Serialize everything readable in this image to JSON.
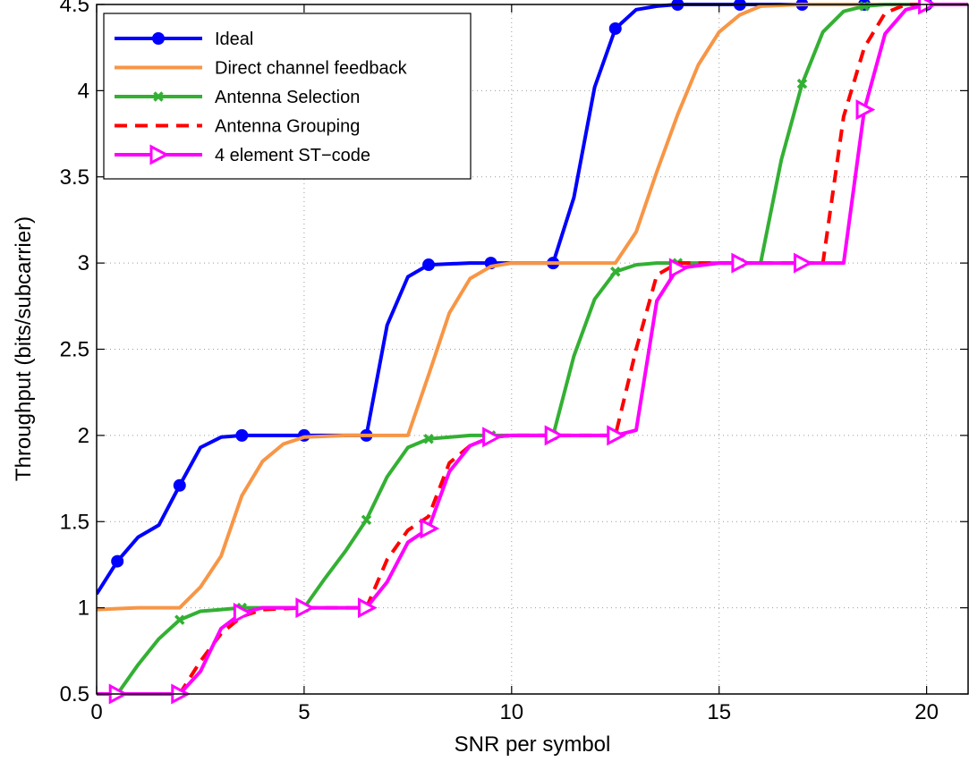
{
  "chart_data": {
    "type": "line",
    "title": "",
    "xlabel": "SNR per symbol",
    "ylabel": "Throughput (bits/subcarrier)",
    "xlim": [
      0,
      21
    ],
    "ylim": [
      0.5,
      4.5
    ],
    "xticks": [
      0,
      5,
      10,
      15,
      20
    ],
    "yticks": [
      0.5,
      1,
      1.5,
      2,
      2.5,
      3,
      3.5,
      4,
      4.5
    ],
    "xtick_labels": [
      "0",
      "5",
      "10",
      "15",
      "20"
    ],
    "ytick_labels": [
      "0.5",
      "1",
      "1.5",
      "2",
      "2.5",
      "3",
      "3.5",
      "4",
      "4.5"
    ],
    "grid": true,
    "legend_position": "top-left",
    "series": [
      {
        "name": "Ideal",
        "color": "#0000ff",
        "dash": "solid",
        "marker": "circle",
        "x": [
          0,
          0.5,
          1,
          1.5,
          2,
          2.5,
          3,
          3.5,
          4,
          5,
          6,
          6.5,
          7,
          7.5,
          8,
          9,
          9.5,
          10,
          11,
          11.5,
          12,
          12.5,
          13,
          13.5,
          14,
          15,
          15.5,
          16,
          17,
          18,
          18.5,
          20,
          21
        ],
        "y": [
          1.08,
          1.27,
          1.41,
          1.48,
          1.71,
          1.93,
          1.99,
          2.0,
          2.0,
          2.0,
          2.0,
          2.0,
          2.64,
          2.92,
          2.99,
          3.0,
          3.0,
          3.0,
          3.0,
          3.38,
          4.02,
          4.36,
          4.47,
          4.49,
          4.5,
          4.5,
          4.5,
          4.5,
          4.5,
          4.5,
          4.5,
          4.5,
          4.5
        ],
        "marker_x": [
          0.5,
          2,
          3.5,
          5,
          6.5,
          8,
          9.5,
          11,
          12.5,
          14,
          15.5,
          17,
          18.5,
          20
        ]
      },
      {
        "name": "Direct channel feedback",
        "color": "#f79646",
        "dash": "solid",
        "marker": "none",
        "x": [
          0,
          1,
          2,
          2.5,
          3,
          3.5,
          4,
          4.5,
          5,
          6,
          7,
          7.5,
          8,
          8.5,
          9,
          9.5,
          10,
          11,
          12,
          12.5,
          13,
          13.5,
          14,
          14.5,
          15,
          15.5,
          16,
          17,
          18,
          19,
          20,
          21
        ],
        "y": [
          0.99,
          1.0,
          1.0,
          1.12,
          1.3,
          1.65,
          1.85,
          1.95,
          1.99,
          2.0,
          2.0,
          2.0,
          2.35,
          2.71,
          2.91,
          2.98,
          3.0,
          3.0,
          3.0,
          3.0,
          3.18,
          3.53,
          3.86,
          4.15,
          4.34,
          4.44,
          4.49,
          4.5,
          4.5,
          4.5,
          4.5,
          4.5
        ]
      },
      {
        "name": "Antenna Selection",
        "color": "#33b033",
        "dash": "solid",
        "marker": "x",
        "x": [
          0.5,
          1,
          1.5,
          2,
          2.5,
          3,
          3.5,
          4,
          5,
          5.5,
          6,
          6.5,
          7,
          7.5,
          8,
          9,
          11,
          11.5,
          12,
          12.5,
          13,
          13.5,
          14,
          15,
          16,
          16.5,
          17,
          17.5,
          18,
          18.5,
          19,
          20,
          21
        ],
        "y": [
          0.5,
          0.67,
          0.82,
          0.93,
          0.98,
          0.99,
          1.0,
          1.0,
          1.0,
          1.17,
          1.33,
          1.51,
          1.76,
          1.93,
          1.98,
          2.0,
          2.0,
          2.46,
          2.79,
          2.95,
          2.99,
          3.0,
          3.0,
          3.0,
          3.0,
          3.6,
          4.04,
          4.34,
          4.46,
          4.49,
          4.5,
          4.5,
          4.5
        ],
        "marker_x": [
          2,
          3.5,
          5,
          6.5,
          8,
          9.5,
          11,
          12.5,
          14,
          15.5,
          17,
          18.5
        ]
      },
      {
        "name": "Antenna Grouping",
        "color": "#ff0000",
        "dash": "dashed",
        "marker": "none",
        "x": [
          0,
          1,
          2,
          2.5,
          3,
          3.5,
          4,
          5,
          6,
          6.5,
          7,
          7.5,
          8,
          8.5,
          9,
          9.5,
          10,
          11,
          12,
          12.5,
          13,
          13.5,
          14,
          15,
          16,
          17,
          17.5,
          18,
          18.5,
          19,
          19.5,
          20,
          21
        ],
        "y": [
          0.5,
          0.5,
          0.5,
          0.69,
          0.85,
          0.95,
          0.99,
          1.0,
          1.0,
          1.0,
          1.28,
          1.45,
          1.53,
          1.84,
          1.94,
          1.99,
          2.0,
          2.0,
          2.0,
          2.0,
          2.5,
          2.93,
          3.0,
          3.0,
          3.0,
          3.0,
          3.0,
          3.85,
          4.25,
          4.45,
          4.5,
          4.5,
          4.5
        ]
      },
      {
        "name": "4 element ST−code",
        "color": "#ff00ff",
        "dash": "solid",
        "marker": "triangle-right",
        "x": [
          0,
          0.5,
          1,
          2,
          2.5,
          3,
          3.5,
          4,
          5,
          6,
          6.5,
          7,
          7.5,
          8,
          8.5,
          9,
          9.5,
          10,
          11,
          12,
          12.5,
          13,
          13.5,
          14,
          15,
          16,
          17,
          18,
          18.5,
          19,
          19.5,
          20,
          21
        ],
        "y": [
          0.5,
          0.5,
          0.5,
          0.5,
          0.63,
          0.88,
          0.97,
          1.0,
          1.0,
          1.0,
          1.0,
          1.15,
          1.38,
          1.46,
          1.79,
          1.94,
          1.99,
          2.0,
          2.0,
          2.0,
          2.0,
          2.03,
          2.78,
          2.97,
          3.0,
          3.0,
          3.0,
          3.0,
          3.89,
          4.33,
          4.47,
          4.5,
          4.5
        ],
        "marker_x": [
          0.5,
          2,
          3.5,
          5,
          6.5,
          8,
          9.5,
          11,
          12.5,
          14,
          15.5,
          17,
          18.5,
          20
        ]
      }
    ]
  }
}
